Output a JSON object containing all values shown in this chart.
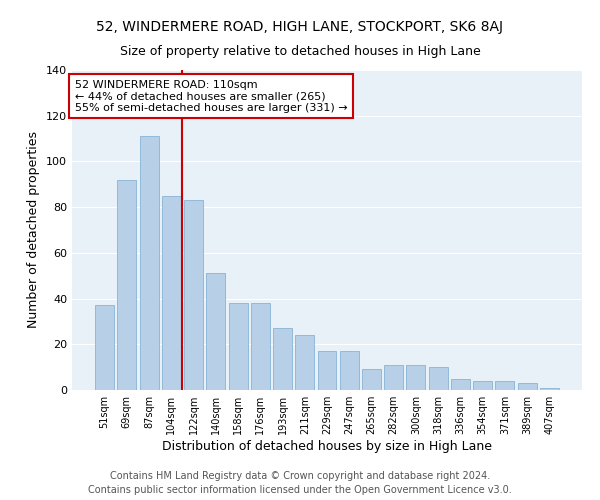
{
  "title": "52, WINDERMERE ROAD, HIGH LANE, STOCKPORT, SK6 8AJ",
  "subtitle": "Size of property relative to detached houses in High Lane",
  "xlabel": "Distribution of detached houses by size in High Lane",
  "ylabel": "Number of detached properties",
  "categories": [
    "51sqm",
    "69sqm",
    "87sqm",
    "104sqm",
    "122sqm",
    "140sqm",
    "158sqm",
    "176sqm",
    "193sqm",
    "211sqm",
    "229sqm",
    "247sqm",
    "265sqm",
    "282sqm",
    "300sqm",
    "318sqm",
    "336sqm",
    "354sqm",
    "371sqm",
    "389sqm",
    "407sqm"
  ],
  "values": [
    37,
    92,
    111,
    85,
    83,
    51,
    38,
    38,
    27,
    24,
    17,
    17,
    9,
    11,
    11,
    10,
    5,
    4,
    4,
    3,
    1
  ],
  "bar_color": "#b8cfe8",
  "bar_edge_color": "#7aaace",
  "vline_x": 3.5,
  "vline_color": "#cc0000",
  "annotation_text": "52 WINDERMERE ROAD: 110sqm\n← 44% of detached houses are smaller (265)\n55% of semi-detached houses are larger (331) →",
  "annotation_box_color": "#cc0000",
  "ylim": [
    0,
    140
  ],
  "yticks": [
    0,
    20,
    40,
    60,
    80,
    100,
    120,
    140
  ],
  "bg_color": "#e8f0f8",
  "grid_color": "#ffffff",
  "footer_text": "Contains HM Land Registry data © Crown copyright and database right 2024.\nContains public sector information licensed under the Open Government Licence v3.0.",
  "title_fontsize": 10,
  "subtitle_fontsize": 9,
  "xlabel_fontsize": 9,
  "ylabel_fontsize": 9,
  "annotation_fontsize": 8,
  "footer_fontsize": 7,
  "xtick_fontsize": 7,
  "ytick_fontsize": 8
}
